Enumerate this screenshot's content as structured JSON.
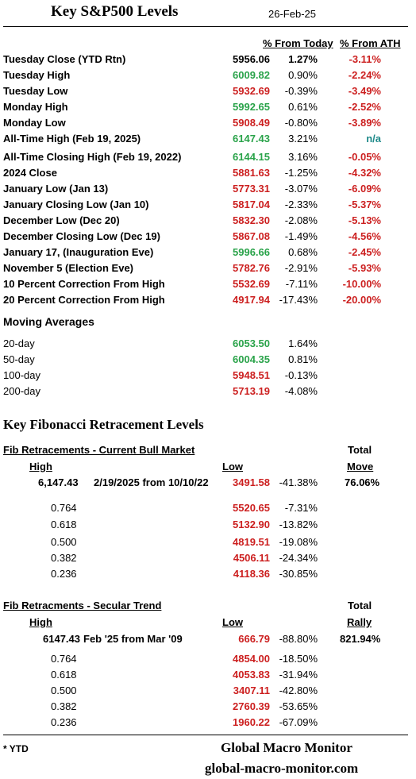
{
  "header": {
    "title": "Key S&P500 Levels",
    "date": "26-Feb-25"
  },
  "columns": {
    "from_today": "% From Today",
    "from_ath": "% From ATH"
  },
  "levels": [
    {
      "label": "Tuesday Close (YTD Rtn)",
      "value": "5956.06",
      "value_color": "black",
      "from_today": "1.27%",
      "today_bold": true,
      "from_ath": "-3.11%",
      "ath_color": "red"
    },
    {
      "label": "Tuesday High",
      "value": "6009.82",
      "value_color": "green",
      "from_today": "0.90%",
      "today_bold": false,
      "from_ath": "-2.24%",
      "ath_color": "red"
    },
    {
      "label": "Tuesday Low",
      "value": "5932.69",
      "value_color": "red",
      "from_today": "-0.39%",
      "today_bold": false,
      "from_ath": "-3.49%",
      "ath_color": "red"
    },
    {
      "label": "Monday High",
      "value": "5992.65",
      "value_color": "green",
      "from_today": "0.61%",
      "today_bold": false,
      "from_ath": "-2.52%",
      "ath_color": "red"
    },
    {
      "label": "Monday Low",
      "value": "5908.49",
      "value_color": "red",
      "from_today": "-0.80%",
      "today_bold": false,
      "from_ath": "-3.89%",
      "ath_color": "red"
    },
    {
      "label": "All-Time High (Feb 19, 2025)",
      "value": "6147.43",
      "value_color": "green",
      "from_today": "3.21%",
      "today_bold": false,
      "from_ath": "n/a",
      "ath_color": "teal"
    },
    {
      "label": "All-Time Closing High (Feb 19, 2022)",
      "value": "6144.15",
      "value_color": "green",
      "from_today": "3.16%",
      "today_bold": false,
      "from_ath": "-0.05%",
      "ath_color": "red"
    },
    {
      "label": "2024 Close",
      "value": "5881.63",
      "value_color": "red",
      "from_today": "-1.25%",
      "today_bold": false,
      "from_ath": "-4.32%",
      "ath_color": "red"
    },
    {
      "label": "January Low (Jan 13)",
      "value": "5773.31",
      "value_color": "red",
      "from_today": "-3.07%",
      "today_bold": false,
      "from_ath": "-6.09%",
      "ath_color": "red"
    },
    {
      "label": "January Closing Low (Jan 10)",
      "value": "5817.04",
      "value_color": "red",
      "from_today": "-2.33%",
      "today_bold": false,
      "from_ath": "-5.37%",
      "ath_color": "red"
    },
    {
      "label": "December Low (Dec 20)",
      "value": "5832.30",
      "value_color": "red",
      "from_today": "-2.08%",
      "today_bold": false,
      "from_ath": "-5.13%",
      "ath_color": "red"
    },
    {
      "label": "December Closing Low (Dec 19)",
      "value": "5867.08",
      "value_color": "red",
      "from_today": "-1.49%",
      "today_bold": false,
      "from_ath": "-4.56%",
      "ath_color": "red"
    },
    {
      "label": "January 17, (Inauguration Eve)",
      "value": "5996.66",
      "value_color": "green",
      "from_today": "0.68%",
      "today_bold": false,
      "from_ath": "-2.45%",
      "ath_color": "red"
    },
    {
      "label": "November 5 (Election Eve)",
      "value": "5782.76",
      "value_color": "red",
      "from_today": "-2.91%",
      "today_bold": false,
      "from_ath": "-5.93%",
      "ath_color": "red"
    },
    {
      "label": "10 Percent Correction From High",
      "value": "5532.69",
      "value_color": "red",
      "from_today": "-7.11%",
      "today_bold": false,
      "from_ath": "-10.00%",
      "ath_color": "red"
    },
    {
      "label": "20 Percent Correction From High",
      "value": "4917.94",
      "value_color": "red",
      "from_today": "-17.43%",
      "today_bold": false,
      "from_ath": "-20.00%",
      "ath_color": "red"
    }
  ],
  "moving_averages": {
    "title": "Moving Averages",
    "rows": [
      {
        "label": "20-day",
        "value": "6053.50",
        "value_color": "green",
        "from_today": "1.64%"
      },
      {
        "label": "50-day",
        "value": "6004.35",
        "value_color": "green",
        "from_today": "0.81%"
      },
      {
        "label": "100-day",
        "value": "5948.51",
        "value_color": "red",
        "from_today": "-0.13%"
      },
      {
        "label": "200-day",
        "value": "5713.19",
        "value_color": "red",
        "from_today": "-4.08%"
      }
    ]
  },
  "fib_title": "Key Fibonacci Retracement Levels",
  "fib_bull": {
    "title": "Fib Retracements - Current Bull Market",
    "high_header": "High",
    "low_header": "Low",
    "total_header_1": "Total",
    "total_header_2": "Move",
    "high": "6,147.43",
    "range": "2/19/2025 from 10/10/22",
    "low": "3491.58",
    "low_pct": "-41.38%",
    "total": "76.06%",
    "rows": [
      {
        "ratio": "0.764",
        "value": "5520.65",
        "pct": "-7.31%"
      },
      {
        "ratio": "0.618",
        "value": "5132.90",
        "pct": "-13.82%"
      },
      {
        "ratio": "0.500",
        "value": "4819.51",
        "pct": "-19.08%"
      },
      {
        "ratio": "0.382",
        "value": "4506.11",
        "pct": "-24.34%"
      },
      {
        "ratio": "0.236",
        "value": "4118.36",
        "pct": "-30.85%"
      }
    ]
  },
  "fib_secular": {
    "title": "Fib Retracments - Secular Trend",
    "high_header": "High",
    "low_header": "Low",
    "total_header_1": "Total",
    "total_header_2": "Rally",
    "high": "6147.43",
    "range": "Feb '25 from Mar '09",
    "low": "666.79",
    "low_pct": "-88.80%",
    "total": "821.94%",
    "rows": [
      {
        "ratio": "0.764",
        "value": "4854.00",
        "pct": "-18.50%"
      },
      {
        "ratio": "0.618",
        "value": "4053.83",
        "pct": "-31.94%"
      },
      {
        "ratio": "0.500",
        "value": "3407.11",
        "pct": "-42.80%"
      },
      {
        "ratio": "0.382",
        "value": "2760.39",
        "pct": "-53.65%"
      },
      {
        "ratio": "0.236",
        "value": "1960.22",
        "pct": "-67.09%"
      }
    ]
  },
  "footer": {
    "note": "* YTD",
    "brand": "Global Macro Monitor",
    "site": "global-macro-monitor.com"
  },
  "colors": {
    "green": "#2aa34a",
    "red": "#cc1f1f",
    "teal": "#1f8a8a"
  }
}
